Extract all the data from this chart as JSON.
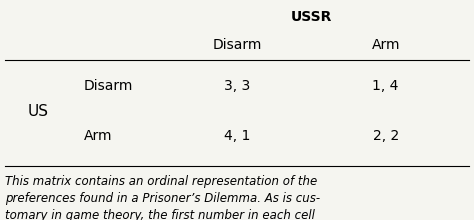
{
  "title_top": "USSR",
  "col_headers": [
    "Disarm",
    "Arm"
  ],
  "row_label_main": "US",
  "row_headers": [
    "Disarm",
    "Arm"
  ],
  "cells": [
    [
      "3, 3",
      "1, 4"
    ],
    [
      "4, 1",
      "2, 2"
    ]
  ],
  "caption": "This matrix contains an ordinal representation of the\npreferences found in a Prisoner’s Dilemma. As is cus-\ntomary in game theory, the first number in each cell",
  "bg_color": "#f5f5f0",
  "text_color": "#000000",
  "font_size_header": 10,
  "font_size_cell": 10,
  "font_size_caption": 8.5
}
